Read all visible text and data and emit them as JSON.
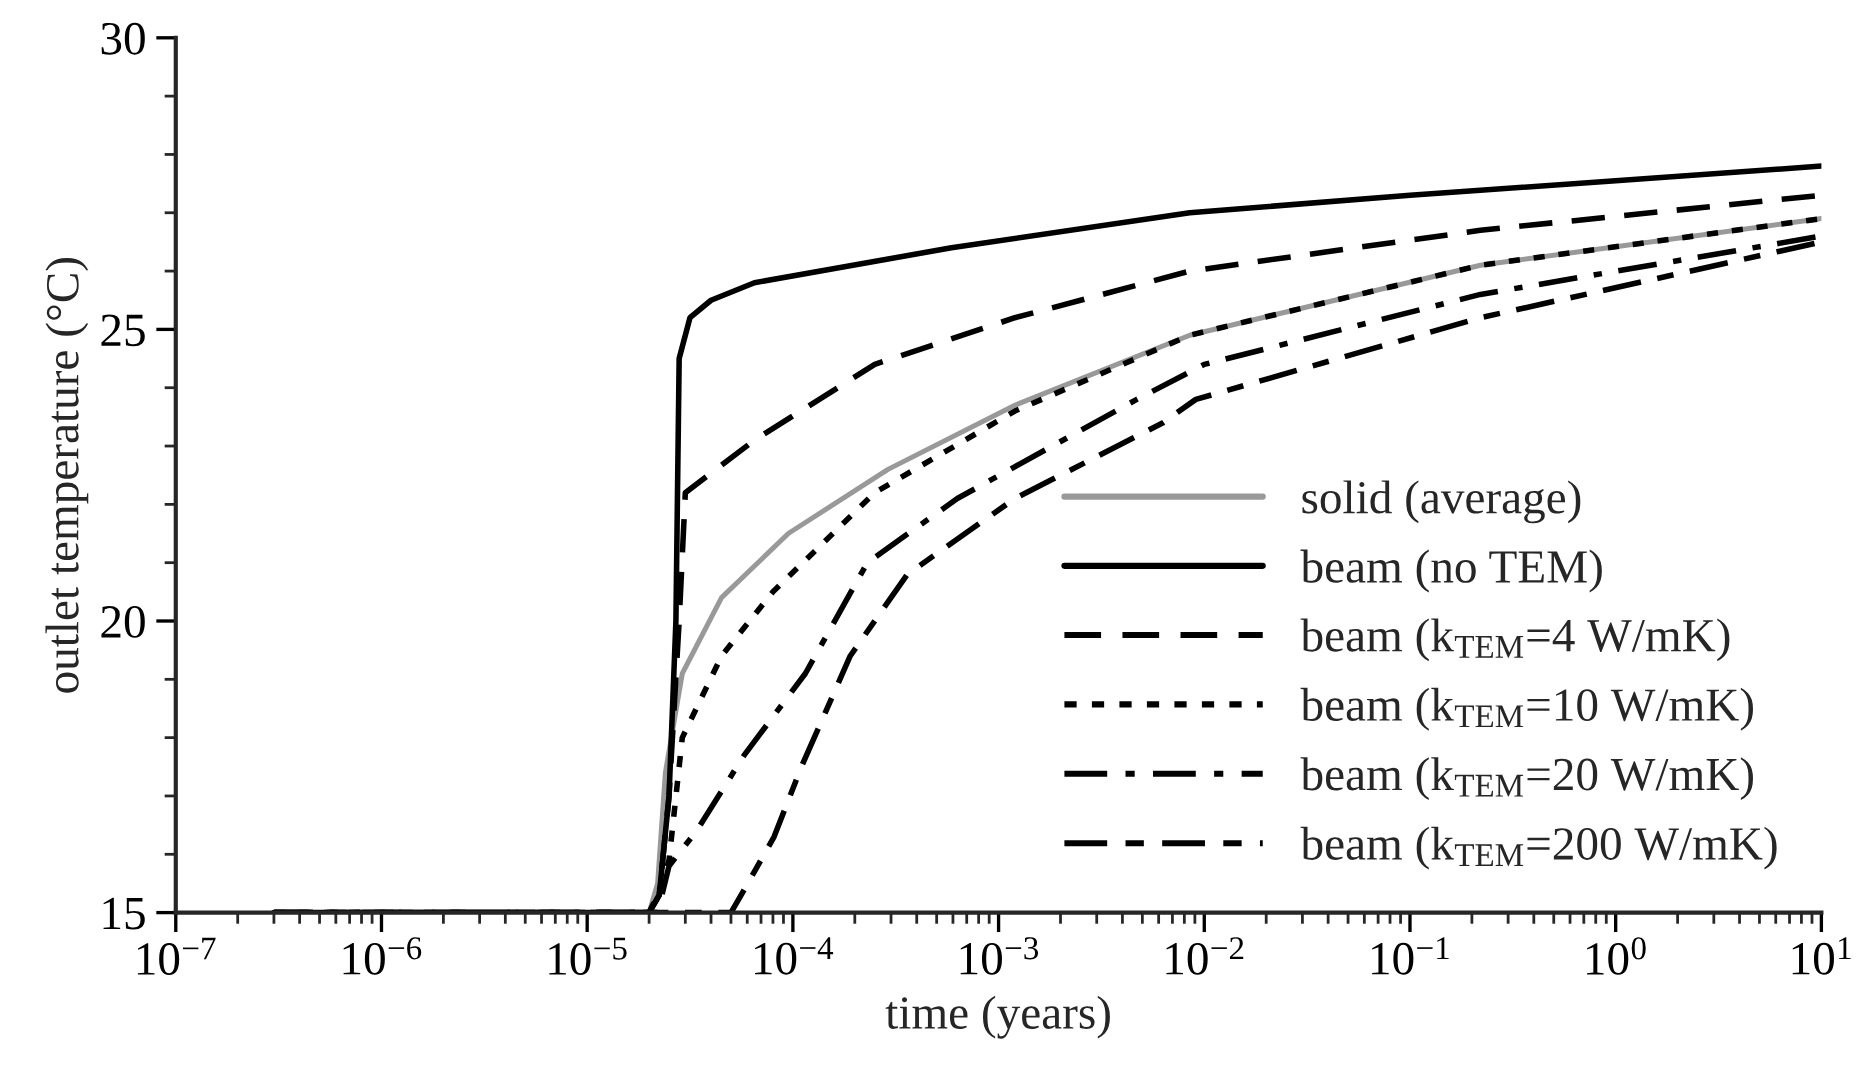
{
  "chart_data": {
    "type": "line",
    "xlabel": "time (years)",
    "ylabel": "outlet temperature (°C)",
    "log": "x",
    "xlim": [
      1e-07,
      10
    ],
    "ylim": [
      15,
      30
    ],
    "xticks": [
      {
        "value": 1e-07,
        "label": "10$^{−7}$"
      },
      {
        "value": 1e-06,
        "label": "10$^{−6}$"
      },
      {
        "value": 1e-05,
        "label": "10$^{−5}$"
      },
      {
        "value": 0.0001,
        "label": "10$^{−4}$"
      },
      {
        "value": 0.001,
        "label": "10$^{−3}$"
      },
      {
        "value": 0.01,
        "label": "10$^{−2}$"
      },
      {
        "value": 0.1,
        "label": "10$^{−1}$"
      },
      {
        "value": 1,
        "label": "10$^{0}$"
      },
      {
        "value": 10,
        "label": "10$^{1}$"
      }
    ],
    "yticks": [
      15,
      {
        "value": 16,
        "label": null
      },
      {
        "value": 17,
        "label": null
      },
      {
        "value": 18,
        "label": null
      },
      {
        "value": 19,
        "label": null
      },
      20,
      {
        "value": 21,
        "label": null
      },
      {
        "value": 22,
        "label": null
      },
      {
        "value": 23,
        "label": null
      },
      {
        "value": 24,
        "label": null
      },
      25,
      {
        "value": 26,
        "label": null
      },
      {
        "value": 27,
        "label": null
      },
      {
        "value": 28,
        "label": null
      },
      {
        "value": 29,
        "label": null
      },
      30
    ],
    "grid": false,
    "legend": "bottom right",
    "marker": "none",
    "series": [
      {
        "name": "solid (average)",
        "color": "#999999",
        "line_style": "solid",
        "x": [
          3e-07,
          2e-05,
          2.2e-05,
          2.4e-05,
          2.9e-05,
          4.5e-05,
          9.5e-05,
          0.00029,
          0.0012,
          0.0085,
          0.22,
          10
        ],
        "values": [
          15,
          15,
          15.5,
          17.4,
          19.1,
          20.4,
          21.5,
          22.6,
          23.7,
          24.9,
          26.1,
          26.9
        ]
      },
      {
        "name": "beam (no TEM)",
        "color": "#000000",
        "line_style": "solid",
        "x": [
          3e-07,
          2e-05,
          2.24e-05,
          2.5e-05,
          2.7e-05,
          2.8e-05,
          3.16e-05,
          4e-05,
          6.5e-05,
          0.00059,
          0.0085,
          0.1,
          1,
          10
        ],
        "values": [
          15,
          15,
          15.3,
          17,
          20,
          24.5,
          25.2,
          25.5,
          25.8,
          26.4,
          27.0,
          27.3,
          27.55,
          27.8
        ]
      },
      {
        "name": "beam (k$_{TEM}$=4 W/mK)",
        "color": "#000000",
        "line_style": "dashed",
        "x": [
          3e-07,
          2e-05,
          2.24e-05,
          2.5e-05,
          2.8e-05,
          3e-05,
          6.5e-05,
          0.00025,
          0.0012,
          0.0085,
          0.22,
          10
        ],
        "values": [
          15,
          15,
          15.3,
          17,
          20,
          22.2,
          23.1,
          24.4,
          25.2,
          26.0,
          26.7,
          27.3
        ]
      },
      {
        "name": "beam (k$_{TEM}$=10 W/mK)",
        "color": "#000000",
        "line_style": "dotted",
        "x": [
          3e-07,
          2e-05,
          2.2e-05,
          2.5e-05,
          2.9e-05,
          4.5e-05,
          8e-05,
          0.00025,
          0.0012,
          0.0085,
          0.22,
          10
        ],
        "values": [
          15,
          15,
          15.3,
          15.9,
          18.0,
          19.4,
          20.5,
          22.2,
          23.6,
          24.9,
          26.1,
          26.9
        ]
      },
      {
        "name": "beam (k$_{TEM}$=20 W/mK)",
        "color": "#000000",
        "line_style": "dashdot",
        "x": [
          3e-07,
          2.2e-05,
          2.5e-05,
          3.4e-05,
          5.8e-05,
          0.000115,
          0.00023,
          0.00063,
          0.0047,
          0.01,
          0.22,
          10
        ],
        "values": [
          15,
          15,
          15.8,
          16.4,
          17.7,
          19.1,
          21.0,
          22.1,
          23.8,
          24.4,
          25.6,
          26.6
        ]
      },
      {
        "name": "beam (k$_{TEM}$=200 W/mK)",
        "color": "#000000",
        "line_style": "longdash",
        "x": [
          3e-07,
          5e-05,
          5.6e-05,
          8.1e-05,
          0.00011,
          0.00019,
          0.00036,
          0.0012,
          0.0063,
          0.0091,
          0.22,
          10
        ],
        "values": [
          15,
          15,
          15.3,
          16.3,
          17.5,
          19.4,
          20.8,
          22.1,
          23.4,
          23.8,
          25.2,
          26.5
        ]
      }
    ]
  }
}
